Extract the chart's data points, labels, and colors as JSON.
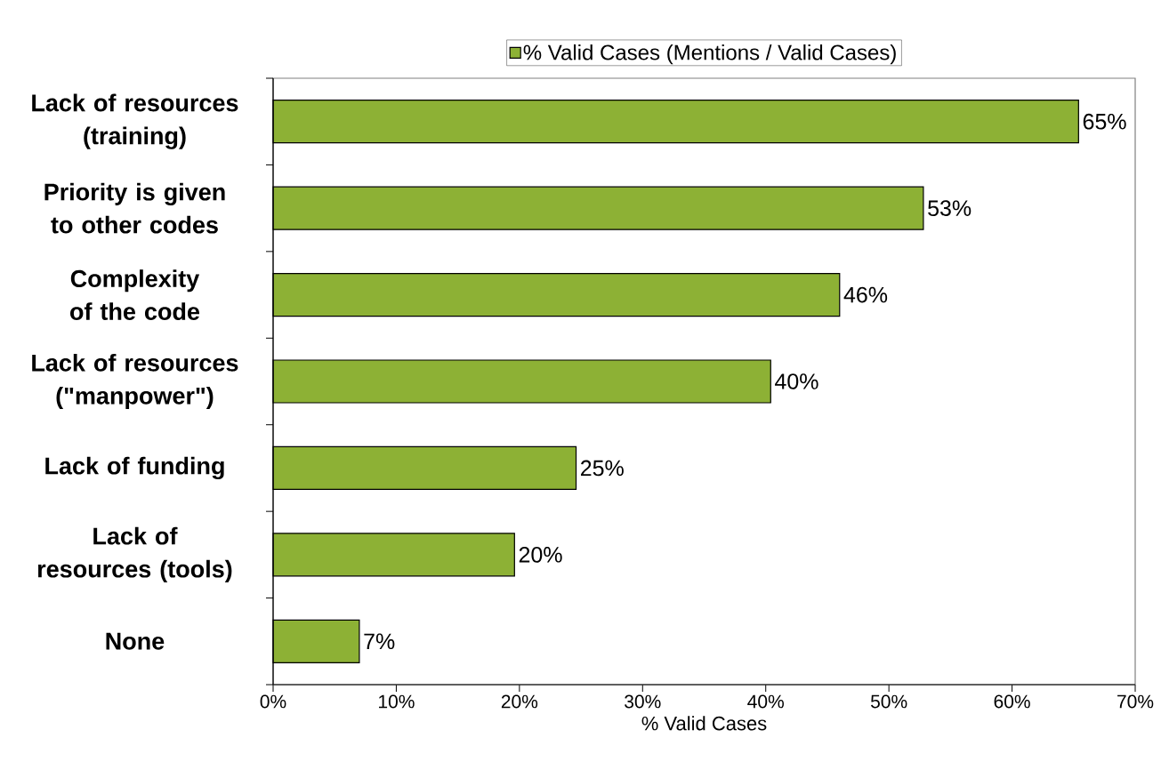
{
  "chart_data": {
    "type": "bar",
    "orientation": "horizontal",
    "categories": [
      "Lack of resources (training)",
      "Priority is given to other codes",
      "Complexity of the code",
      "Lack of resources (\"manpower\")",
      "Lack of funding",
      "Lack of resources (tools)",
      "None"
    ],
    "series": [
      {
        "name": "% Valid Cases (Mentions / Valid Cases)",
        "color": "#8db135",
        "values": [
          65.4,
          52.8,
          46.0,
          40.4,
          24.6,
          19.6,
          7.0
        ]
      }
    ],
    "value_labels": [
      "65%",
      "53%",
      "46%",
      "40%",
      "25%",
      "20%",
      "7%"
    ],
    "xlabel": "% Valid Cases",
    "xlim": [
      0,
      70
    ],
    "xticks": [
      {
        "value": 0,
        "label": "0%"
      },
      {
        "value": 10,
        "label": "10%"
      },
      {
        "value": 20,
        "label": "20%"
      },
      {
        "value": 30,
        "label": "30%"
      },
      {
        "value": 40,
        "label": "40%"
      },
      {
        "value": 50,
        "label": "50%"
      },
      {
        "value": 60,
        "label": "60%"
      },
      {
        "value": 70,
        "label": "70%"
      }
    ],
    "legend": "top",
    "grid": false
  }
}
